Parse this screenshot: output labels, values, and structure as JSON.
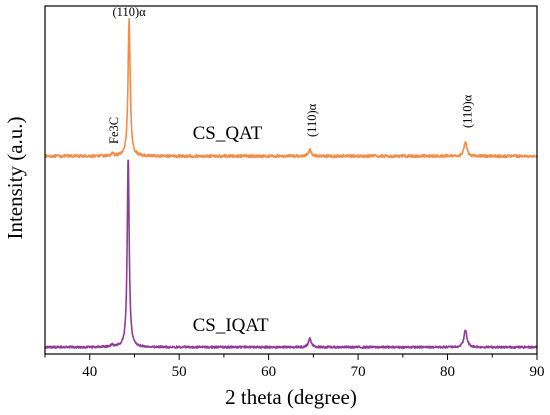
{
  "chart_data": {
    "type": "line",
    "xlabel": "2 theta (degree)",
    "ylabel": "Intensity (a.u.)",
    "xlim": [
      35,
      90
    ],
    "x_ticks": [
      40,
      50,
      60,
      70,
      80,
      90
    ],
    "y_ticks_shown": false,
    "grid": false,
    "legend": "none",
    "series": [
      {
        "name": "CS_QAT",
        "color": "#F58B47",
        "baseline": 0.56,
        "noise": 0.004,
        "peaks": [
          {
            "x": 42.5,
            "height": 0.006,
            "width": 0.18
          },
          {
            "x": 44.4,
            "height": 0.4,
            "width": 0.14
          },
          {
            "x": 64.6,
            "height": 0.02,
            "width": 0.18
          },
          {
            "x": 82.0,
            "height": 0.04,
            "width": 0.2
          }
        ]
      },
      {
        "name": "CS_IQAT",
        "color": "#8E3C96",
        "baseline": 0.0,
        "noise": 0.003,
        "peaks": [
          {
            "x": 42.5,
            "height": 0.006,
            "width": 0.18
          },
          {
            "x": 44.3,
            "height": 0.56,
            "width": 0.13
          },
          {
            "x": 64.6,
            "height": 0.025,
            "width": 0.18
          },
          {
            "x": 82.0,
            "height": 0.05,
            "width": 0.2
          }
        ]
      }
    ],
    "annotations": [
      {
        "text": "(110)α",
        "x": 44.4,
        "rotated": false
      },
      {
        "text": "Fe3C",
        "x": 42.5,
        "rotated": true
      },
      {
        "text": "(110)α",
        "x": 64.6,
        "rotated": true
      },
      {
        "text": "(110)α",
        "x": 82.0,
        "rotated": true
      }
    ],
    "series_labels": [
      {
        "text": "CS_QAT",
        "x": 51.5
      },
      {
        "text": "CS_IQAT",
        "x": 51.5
      }
    ]
  }
}
